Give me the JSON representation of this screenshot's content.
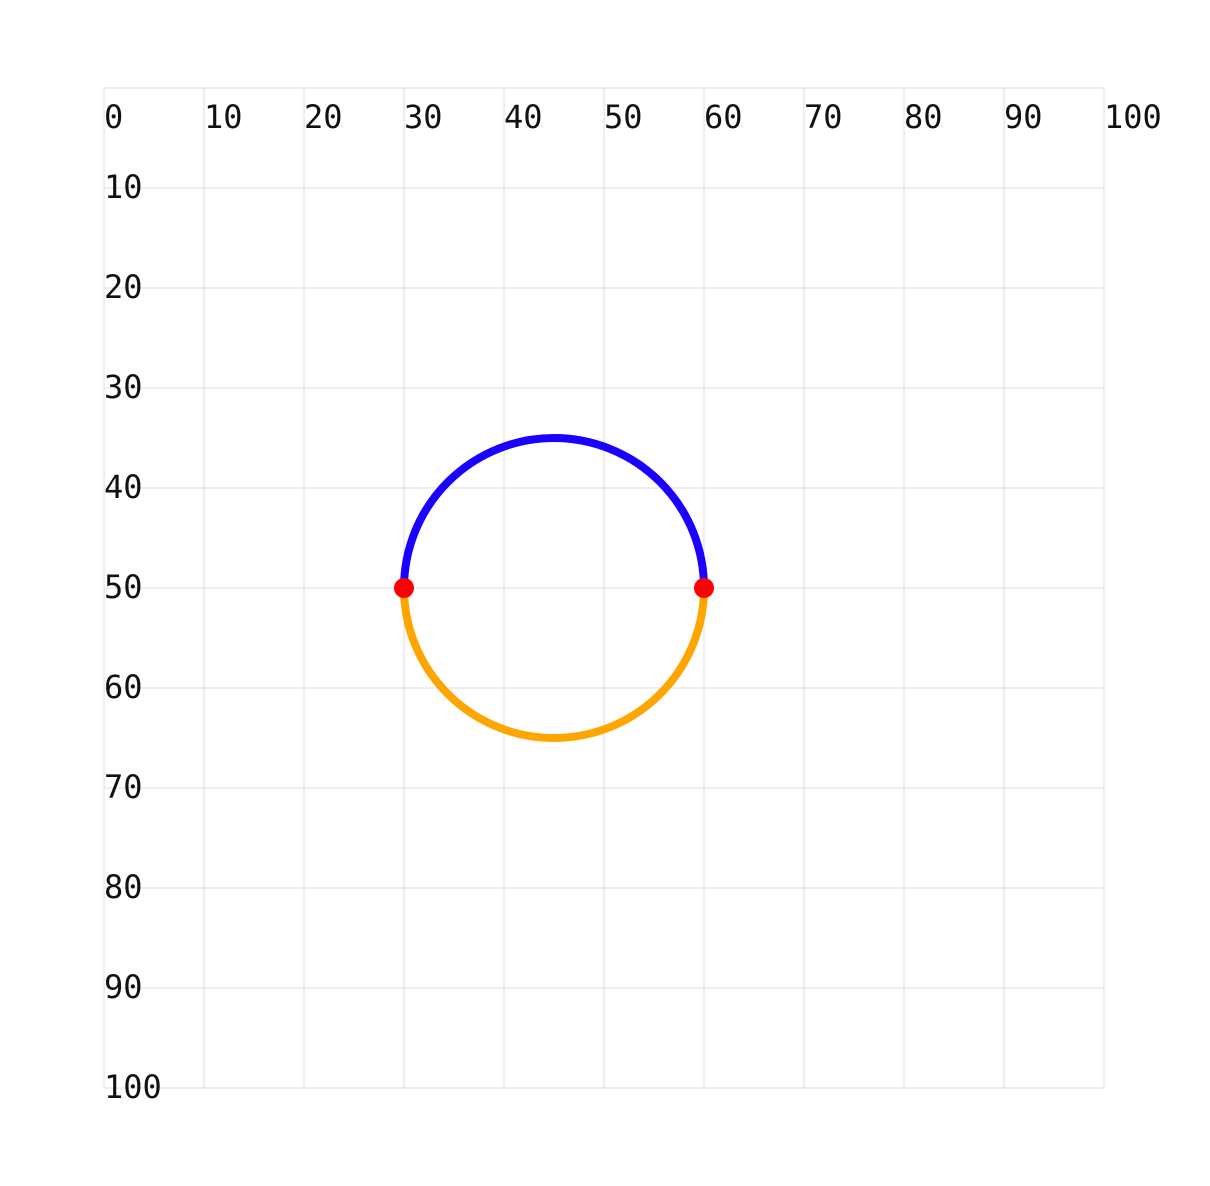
{
  "diagram": {
    "x_ticks": [
      "0",
      "10",
      "20",
      "30",
      "40",
      "50",
      "60",
      "70",
      "80",
      "90",
      "100"
    ],
    "y_ticks": [
      "10",
      "20",
      "30",
      "40",
      "50",
      "60",
      "70",
      "80",
      "90",
      "100"
    ],
    "domain": {
      "x": [
        0,
        100
      ],
      "y": [
        0,
        100
      ]
    },
    "grid_step": 10,
    "circle": {
      "center": [
        45,
        50
      ],
      "radius": 15,
      "upper_arc_color": "#1a00ff",
      "lower_arc_color": "#ffa500"
    },
    "points": [
      {
        "x": 30,
        "y": 50,
        "color": "#ff0000"
      },
      {
        "x": 60,
        "y": 50,
        "color": "#ff0000"
      }
    ],
    "colors": {
      "grid": "#dcdcdc",
      "text": "#111111",
      "background": "#ffffff"
    }
  }
}
